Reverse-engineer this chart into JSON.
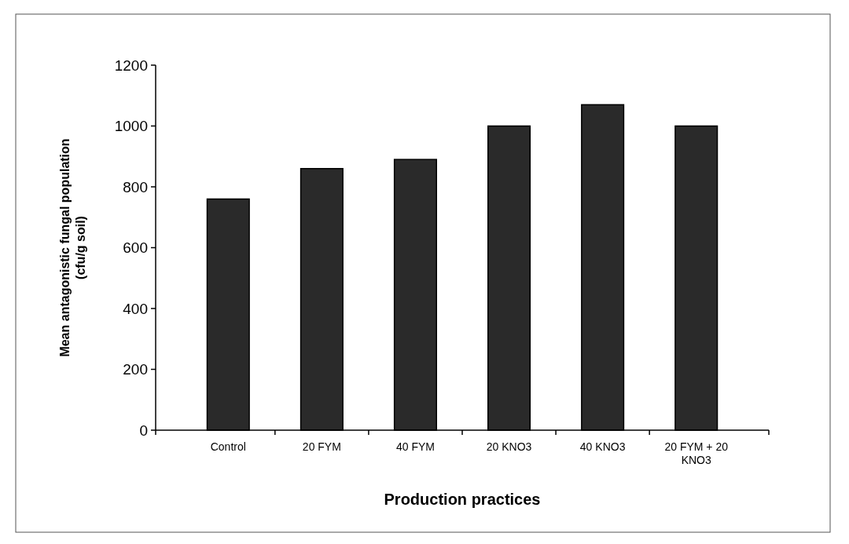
{
  "chart_data": {
    "type": "bar",
    "xlabel": "Production practices",
    "ylabel": "Mean antagonistic fungal population (cfu/g soil)",
    "categories": [
      "Control",
      "20 FYM",
      "40 FYM",
      "20 KNO3",
      "40 KNO3",
      "20 FYM + 20 KNO3"
    ],
    "values": [
      760,
      860,
      890,
      1000,
      1070,
      1000
    ],
    "color": "#2a2a2a",
    "ylim": [
      0,
      1200
    ],
    "yticks": [
      0,
      200,
      400,
      600,
      800,
      1000,
      1200
    ],
    "grid": false
  }
}
